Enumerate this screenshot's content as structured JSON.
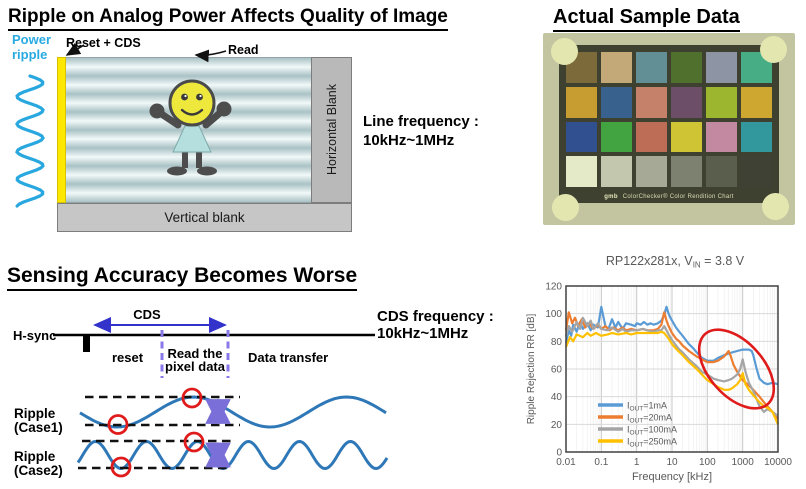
{
  "slide": {
    "colors": {
      "power_ripple_wave": "#29a8e0",
      "diagram_wave_blue": "#2e78b8",
      "highlight_red": "#e01b1b",
      "marker_purple": "#7a6fd8",
      "cds_arrow_blue": "#3333cc",
      "yellow_bar": "#ffe800"
    },
    "section1": {
      "title": "Ripple on Analog Power Affects Quality of Image",
      "power_ripple": [
        "Power",
        "ripple"
      ],
      "reset_cds_label": "Reset + CDS",
      "read_label": "Read",
      "horizontal_blank_label": "Horizontal Blank",
      "vertical_blank_label": "Vertical blank",
      "line_frequency": [
        "Line frequency :",
        "10kHz~1MHz"
      ]
    },
    "section2": {
      "title": "Actual Sample Data",
      "caption_brand": "gmb",
      "caption_text": "ColorChecker® Color Rendition Chart",
      "patches": [
        "#7d6a3a",
        "#c3a878",
        "#628f96",
        "#50702e",
        "#8d95a4",
        "#47ad85",
        "#c79d32",
        "#38618e",
        "#c5816a",
        "#6d4e68",
        "#9cb72f",
        "#cda72f",
        "#31508f",
        "#42a341",
        "#bd6d55",
        "#cfc433",
        "#c389a1",
        "#33989e",
        "#e4eac8",
        "#c3c7ad",
        "#a5a995",
        "#7d8170",
        "#5a5e4d",
        "#3e4134"
      ]
    },
    "section3": {
      "title": "Sensing Accuracy Becomes Worse",
      "hsync_label": "H-sync",
      "cds_label": "CDS",
      "reset_label": "reset",
      "read_pixel": [
        "Read the",
        "pixel data"
      ],
      "data_transfer_label": "Data transfer",
      "cds_frequency": [
        "CDS frequency :",
        "10kHz~1MHz"
      ],
      "case1_label": [
        "Ripple",
        "(Case1)"
      ],
      "case2_label": [
        "Ripple",
        "(Case2)"
      ]
    }
  },
  "chart_data": {
    "type": "line",
    "title": {
      "pre": "RP122x281x, V",
      "sub": "IN",
      "post": " = 3.8 V"
    },
    "xlabel": "Frequency [kHz]",
    "ylabel": "Ripple Rejection RR [dB]",
    "x_scale": "log",
    "xlim": [
      0.01,
      10000
    ],
    "ylim": [
      0,
      120
    ],
    "x_ticks": [
      "0.01",
      "0.1",
      "1",
      "10",
      "100",
      "1000",
      "10000"
    ],
    "y_ticks": [
      0,
      20,
      40,
      60,
      80,
      100,
      120
    ],
    "grid": true,
    "legend_position": "inside bottom-left",
    "annotation": {
      "type": "ellipse",
      "color": "#e01b1b",
      "meaning": "highlights RR peaks between ~100 kHz and ~2 MHz"
    },
    "series": [
      {
        "name": "IOUT=1mA",
        "legend": {
          "pre": "I",
          "sub": "OUT",
          "post": "=1mA"
        },
        "color": "#5b9bd5",
        "points": [
          [
            0.01,
            79
          ],
          [
            0.012,
            88
          ],
          [
            0.014,
            84
          ],
          [
            0.016,
            92
          ],
          [
            0.02,
            87
          ],
          [
            0.025,
            94
          ],
          [
            0.03,
            89
          ],
          [
            0.04,
            93
          ],
          [
            0.05,
            88
          ],
          [
            0.06,
            92
          ],
          [
            0.08,
            90
          ],
          [
            0.1,
            105
          ],
          [
            0.13,
            91
          ],
          [
            0.16,
            89
          ],
          [
            0.2,
            96
          ],
          [
            0.25,
            90
          ],
          [
            0.3,
            94
          ],
          [
            0.4,
            89
          ],
          [
            0.5,
            93
          ],
          [
            0.7,
            92
          ],
          [
            0.9,
            91
          ],
          [
            1,
            93
          ],
          [
            1.3,
            92
          ],
          [
            1.6,
            94
          ],
          [
            2,
            92
          ],
          [
            2.5,
            93
          ],
          [
            3,
            92
          ],
          [
            4,
            93
          ],
          [
            5,
            95
          ],
          [
            6,
            99
          ],
          [
            7,
            105
          ],
          [
            8,
            100
          ],
          [
            9,
            97
          ],
          [
            10,
            95
          ],
          [
            13,
            90
          ],
          [
            16,
            87
          ],
          [
            20,
            84
          ],
          [
            30,
            78
          ],
          [
            40,
            75
          ],
          [
            50,
            72
          ],
          [
            70,
            68
          ],
          [
            100,
            66
          ],
          [
            150,
            66
          ],
          [
            200,
            68
          ],
          [
            300,
            70
          ],
          [
            500,
            72
          ],
          [
            700,
            73
          ],
          [
            1000,
            74
          ],
          [
            1500,
            74
          ],
          [
            1800,
            73
          ],
          [
            2000,
            70
          ],
          [
            2500,
            60
          ],
          [
            3000,
            53
          ],
          [
            4000,
            50
          ],
          [
            5000,
            49
          ],
          [
            7000,
            50
          ],
          [
            10000,
            49
          ]
        ]
      },
      {
        "name": "IOUT=20mA",
        "legend": {
          "pre": "I",
          "sub": "OUT",
          "post": "=20mA"
        },
        "color": "#ed7d31",
        "points": [
          [
            0.01,
            88
          ],
          [
            0.012,
            101
          ],
          [
            0.015,
            93
          ],
          [
            0.018,
            97
          ],
          [
            0.022,
            91
          ],
          [
            0.028,
            96
          ],
          [
            0.035,
            90
          ],
          [
            0.045,
            93
          ],
          [
            0.06,
            89
          ],
          [
            0.08,
            92
          ],
          [
            0.1,
            89
          ],
          [
            0.13,
            91
          ],
          [
            0.17,
            88
          ],
          [
            0.22,
            90
          ],
          [
            0.3,
            88
          ],
          [
            0.4,
            90
          ],
          [
            0.5,
            88
          ],
          [
            0.7,
            89
          ],
          [
            1,
            88
          ],
          [
            1.5,
            89
          ],
          [
            2,
            88
          ],
          [
            3,
            88
          ],
          [
            4,
            89
          ],
          [
            5,
            92
          ],
          [
            6,
            101
          ],
          [
            7,
            95
          ],
          [
            8,
            91
          ],
          [
            10,
            86
          ],
          [
            13,
            82
          ],
          [
            16,
            80
          ],
          [
            20,
            77
          ],
          [
            30,
            73
          ],
          [
            50,
            69
          ],
          [
            70,
            67
          ],
          [
            100,
            65
          ],
          [
            150,
            65
          ],
          [
            200,
            66
          ],
          [
            300,
            69
          ],
          [
            400,
            73
          ],
          [
            450,
            70
          ],
          [
            550,
            63
          ],
          [
            700,
            58
          ],
          [
            1000,
            52
          ],
          [
            1500,
            48
          ],
          [
            2000,
            45
          ],
          [
            3000,
            40
          ],
          [
            4000,
            36
          ],
          [
            5000,
            33
          ],
          [
            7000,
            29
          ],
          [
            10000,
            24
          ]
        ]
      },
      {
        "name": "IOUT=100mA",
        "legend": {
          "pre": "I",
          "sub": "OUT",
          "post": "=100mA"
        },
        "color": "#a5a5a5",
        "points": [
          [
            0.01,
            84
          ],
          [
            0.012,
            91
          ],
          [
            0.015,
            87
          ],
          [
            0.02,
            94
          ],
          [
            0.025,
            89
          ],
          [
            0.03,
            97
          ],
          [
            0.04,
            91
          ],
          [
            0.05,
            95
          ],
          [
            0.06,
            89
          ],
          [
            0.08,
            93
          ],
          [
            0.1,
            89
          ],
          [
            0.15,
            88
          ],
          [
            0.2,
            90
          ],
          [
            0.3,
            87
          ],
          [
            0.4,
            89
          ],
          [
            0.5,
            87
          ],
          [
            0.7,
            88
          ],
          [
            1,
            88
          ],
          [
            1.5,
            89
          ],
          [
            2,
            88
          ],
          [
            3,
            87
          ],
          [
            4,
            88
          ],
          [
            5,
            88
          ],
          [
            6,
            91
          ],
          [
            7,
            88
          ],
          [
            8,
            85
          ],
          [
            10,
            81
          ],
          [
            15,
            75
          ],
          [
            20,
            72
          ],
          [
            30,
            67
          ],
          [
            50,
            62
          ],
          [
            70,
            58
          ],
          [
            100,
            56
          ],
          [
            150,
            53
          ],
          [
            200,
            52
          ],
          [
            300,
            51
          ],
          [
            400,
            52
          ],
          [
            500,
            53
          ],
          [
            700,
            56
          ],
          [
            850,
            60
          ],
          [
            1000,
            67
          ],
          [
            1200,
            58
          ],
          [
            1500,
            50
          ],
          [
            2000,
            44
          ],
          [
            2500,
            38
          ],
          [
            3000,
            33
          ],
          [
            4000,
            29
          ],
          [
            5000,
            31
          ],
          [
            7000,
            29
          ],
          [
            10000,
            26
          ]
        ]
      },
      {
        "name": "IOUT=250mA",
        "legend": {
          "pre": "I",
          "sub": "OUT",
          "post": "=250mA"
        },
        "color": "#ffc000",
        "points": [
          [
            0.01,
            76
          ],
          [
            0.013,
            83
          ],
          [
            0.016,
            80
          ],
          [
            0.02,
            85
          ],
          [
            0.03,
            83
          ],
          [
            0.04,
            86
          ],
          [
            0.05,
            84
          ],
          [
            0.07,
            86
          ],
          [
            0.1,
            84
          ],
          [
            0.15,
            85
          ],
          [
            0.2,
            86
          ],
          [
            0.3,
            85
          ],
          [
            0.5,
            86
          ],
          [
            0.7,
            85
          ],
          [
            1,
            86
          ],
          [
            1.5,
            86
          ],
          [
            2,
            86
          ],
          [
            3,
            86
          ],
          [
            4,
            86
          ],
          [
            5,
            87
          ],
          [
            6,
            86
          ],
          [
            8,
            82
          ],
          [
            10,
            78
          ],
          [
            15,
            73
          ],
          [
            20,
            70
          ],
          [
            30,
            65
          ],
          [
            50,
            60
          ],
          [
            70,
            56
          ],
          [
            100,
            52
          ],
          [
            150,
            49
          ],
          [
            200,
            47
          ],
          [
            300,
            45
          ],
          [
            400,
            45
          ],
          [
            500,
            46
          ],
          [
            700,
            49
          ],
          [
            850,
            52
          ],
          [
            1000,
            57
          ],
          [
            1200,
            49
          ],
          [
            1500,
            45
          ],
          [
            2000,
            41
          ],
          [
            3000,
            36
          ],
          [
            4000,
            33
          ],
          [
            5000,
            32
          ],
          [
            7000,
            29
          ],
          [
            10000,
            20
          ]
        ]
      }
    ]
  }
}
